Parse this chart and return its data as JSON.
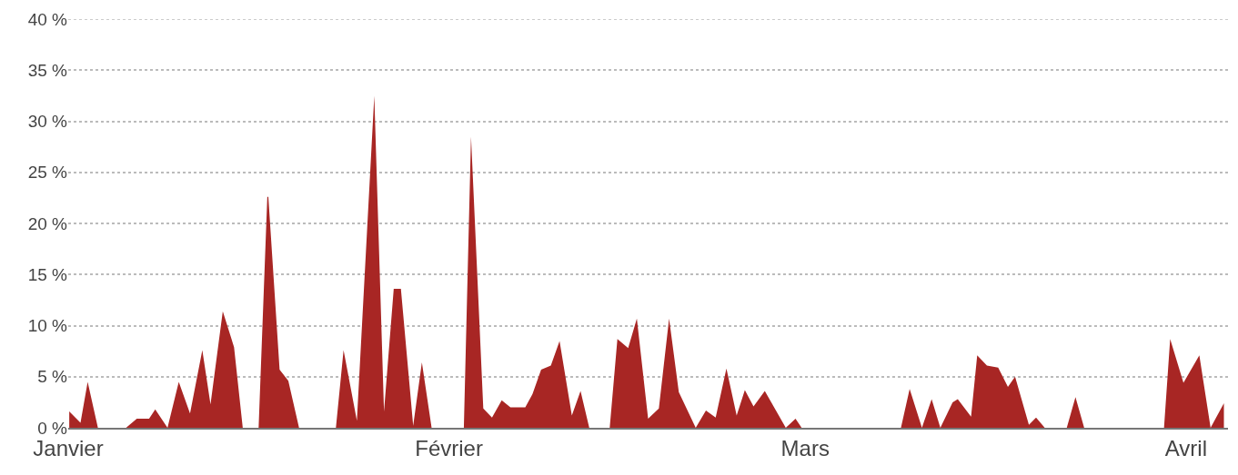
{
  "chart_data": {
    "type": "area",
    "x": [
      "--01-01T02:00",
      "--01-02T00:00",
      "--01-02T14:00",
      "--01-03T10:00",
      "--01-05T17:00",
      "--01-06T14:00",
      "--01-07T14:00",
      "--01-08T02:00",
      "--01-09T02:00",
      "--01-10T00:00",
      "--01-10T22:00",
      "--01-11T22:00",
      "--01-12T14:00",
      "--01-13T14:00",
      "--01-14T12:00",
      "--01-15T05:00",
      "--01-16T12:00",
      "--01-17T05:00",
      "--01-17T07:00",
      "--01-18T05:00",
      "--01-18T22:00",
      "--01-19T19:00",
      "--01-22T19:00",
      "--01-23T10:00",
      "--01-24T12:00",
      "--01-25T22:00",
      "--01-26T17:00",
      "--01-27T12:00",
      "--01-28T02:00",
      "--01-29T02:00",
      "--01-29T19:00",
      "--01-30T14:00",
      "--02-02T05:00",
      "--02-02T19:00",
      "--02-03T19:00",
      "--02-04T12:00",
      "--02-05T07:00",
      "--02-06T00:00",
      "--02-07T05:00",
      "--02-07T19:00",
      "--02-08T12:00",
      "--02-09T07:00",
      "--02-10T00:00",
      "--02-11T00:00",
      "--02-11T17:00",
      "--02-12T10:00",
      "--02-14T02:00",
      "--02-14T17:00",
      "--02-15T14:00",
      "--02-16T07:00",
      "--02-17T05:00",
      "--02-18T02:00",
      "--02-18T22:00",
      "--02-19T17:00",
      "--02-21T02:00",
      "--02-21T22:00",
      "--02-22T17:00",
      "--02-23T14:00",
      "--02-24T10:00",
      "--02-25T02:00",
      "--02-25T19:00",
      "--02-26T17:00",
      "--02-28T10:00",
      "--02-29T05:00",
      "--02-29T17:00",
      "--03-08T19:00",
      "--03-09T12:00",
      "--03-10T12:00",
      "--03-11T07:00",
      "--03-12T00:00",
      "--03-13T00:00",
      "--03-13T10:00",
      "--03-14T12:00",
      "--03-15T00:00",
      "--03-15T19:00",
      "--03-16T17:00",
      "--03-17T12:00",
      "--03-18T02:00",
      "--03-19T05:00",
      "--03-19T19:00",
      "--03-20T12:00",
      "--03-22T07:00",
      "--03-23T00:00",
      "--03-23T17:00",
      "--03-30T05:00",
      "--03-30T17:00",
      "--03-31T19:00",
      "--04-02T02:00",
      "--04-03T00:00",
      "--04-04T02:00"
    ],
    "series": [
      {
        "color": "#a82624",
        "values": [
          1.6,
          0.5,
          4.5,
          0,
          0,
          0.9,
          0.9,
          1.8,
          0,
          4.5,
          1.4,
          7.6,
          2.3,
          11.4,
          7.9,
          0,
          0,
          22.6,
          22.6,
          5.7,
          4.6,
          0,
          0,
          7.6,
          0.7,
          32.5,
          1.6,
          13.6,
          13.6,
          0.2,
          6.4,
          0,
          0,
          28.5,
          1.9,
          1.0,
          2.7,
          2.0,
          2.0,
          3.3,
          5.7,
          6.1,
          8.5,
          1.2,
          3.6,
          0,
          0,
          8.7,
          7.8,
          10.7,
          0.9,
          1.9,
          10.7,
          3.5,
          0,
          1.7,
          1.0,
          5.8,
          1.2,
          3.7,
          2.1,
          3.6,
          0,
          0.9,
          0,
          0,
          3.8,
          0,
          2.8,
          0,
          2.5,
          2.8,
          1.1,
          7.1,
          6.1,
          5.9,
          4.0,
          5.0,
          0.3,
          1.0,
          0,
          0,
          3.0,
          0,
          0,
          8.7,
          4.4,
          7.1,
          0,
          2.4
        ]
      }
    ],
    "xlim": [
      "--01-01T00:00",
      "--04-04T10:00"
    ],
    "xticks": [
      {
        "value": "--01-01",
        "label": "Janvier"
      },
      {
        "value": "--02-01",
        "label": "Février"
      },
      {
        "value": "--03-01",
        "label": "Mars"
      },
      {
        "value": "--04-01",
        "label": "Avril"
      }
    ],
    "ylim": [
      0,
      40
    ],
    "yticks": [
      {
        "value": 0,
        "label": "0 %"
      },
      {
        "value": 5,
        "label": "5 %"
      },
      {
        "value": 10,
        "label": "10 %"
      },
      {
        "value": 15,
        "label": "15 %"
      },
      {
        "value": 20,
        "label": "20 %"
      },
      {
        "value": 25,
        "label": "25 %"
      },
      {
        "value": 30,
        "label": "30 %"
      },
      {
        "value": 35,
        "label": "35 %"
      },
      {
        "value": 40,
        "label": "40 %"
      }
    ],
    "grid": "y"
  }
}
